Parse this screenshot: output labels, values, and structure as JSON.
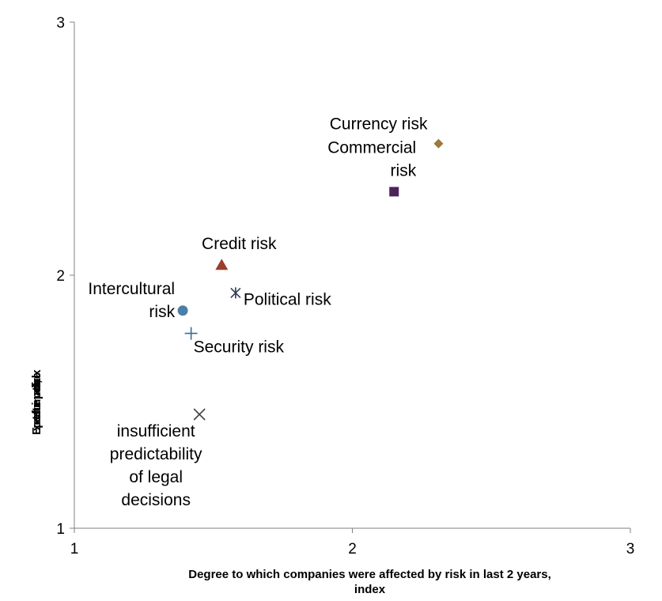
{
  "chart_data": {
    "type": "scatter",
    "xlabel": "Degree to which companies were affected by risk in last 2 years, index",
    "xlabel_lines": [
      "Degree to which companies were affected by risk in last 2 years,",
      "index"
    ],
    "ylabel": "Expected future impact of risk, index",
    "xlim": [
      1,
      3
    ],
    "ylim": [
      1,
      3
    ],
    "x_ticks": [
      1,
      2,
      3
    ],
    "y_ticks": [
      1,
      2,
      3
    ],
    "grid": false,
    "legend": "none",
    "points": [
      {
        "label": "Currency risk",
        "label_lines": [
          "Currency risk"
        ],
        "x": 2.31,
        "y": 2.52,
        "marker": "diamond",
        "color": "#9B7A3A"
      },
      {
        "label": "Commercial risk",
        "label_lines": [
          "Commercial",
          "risk"
        ],
        "x": 2.15,
        "y": 2.33,
        "marker": "square",
        "color": "#4B2358"
      },
      {
        "label": "Credit risk",
        "label_lines": [
          "Credit risk"
        ],
        "x": 1.53,
        "y": 2.04,
        "marker": "triangle",
        "color": "#9B3D2A"
      },
      {
        "label": "Political risk",
        "label_lines": [
          "Political risk"
        ],
        "x": 1.58,
        "y": 1.93,
        "marker": "star",
        "color": "#2E3B55"
      },
      {
        "label": "Intercultural risk",
        "label_lines": [
          "Intercultural",
          "risk"
        ],
        "x": 1.39,
        "y": 1.86,
        "marker": "circle",
        "color": "#4A7FA7"
      },
      {
        "label": "Security risk",
        "label_lines": [
          "Security risk"
        ],
        "x": 1.42,
        "y": 1.77,
        "marker": "plus",
        "color": "#3E6A95"
      },
      {
        "label": "insufficient predictability of legal decisions",
        "label_lines": [
          "insufficient",
          "predictability",
          "of legal",
          "decisions"
        ],
        "x": 1.45,
        "y": 1.45,
        "marker": "x",
        "color": "#404040"
      }
    ]
  }
}
